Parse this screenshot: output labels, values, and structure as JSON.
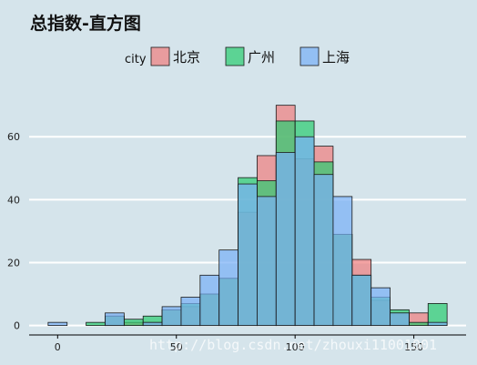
{
  "chart_data": {
    "type": "bar",
    "title": "总指数-直方图",
    "xlabel": "",
    "ylabel": "",
    "xlim": [
      -12,
      172
    ],
    "ylim": [
      -3,
      78
    ],
    "x_ticks": [
      0,
      50,
      100,
      150
    ],
    "y_ticks": [
      0,
      20,
      40,
      60
    ],
    "bin_width": 8,
    "bin_centers": [
      0,
      8,
      16,
      24,
      32,
      40,
      48,
      56,
      64,
      72,
      80,
      88,
      96,
      104,
      112,
      120,
      128,
      136,
      144,
      152,
      160
    ],
    "legend": {
      "title": "city",
      "placement": "top-center"
    },
    "series": [
      {
        "name": "北京",
        "color": "#f08080",
        "values": [
          0,
          0,
          0,
          3,
          1,
          1,
          5,
          6,
          10,
          15,
          36,
          54,
          70,
          53,
          57,
          29,
          21,
          8,
          4,
          4,
          0
        ]
      },
      {
        "name": "广州",
        "color": "#2ecc71",
        "values": [
          0,
          0,
          1,
          3,
          2,
          3,
          5,
          7,
          10,
          15,
          47,
          46,
          65,
          65,
          52,
          29,
          16,
          9,
          5,
          1,
          7
        ]
      },
      {
        "name": "上海",
        "color": "#7ab0f5",
        "values": [
          1,
          0,
          0,
          4,
          0,
          1,
          6,
          9,
          16,
          24,
          45,
          41,
          55,
          60,
          48,
          41,
          16,
          12,
          4,
          0,
          1
        ]
      }
    ]
  },
  "watermark": "http://blog.csdn.net/zhouxi11001001"
}
